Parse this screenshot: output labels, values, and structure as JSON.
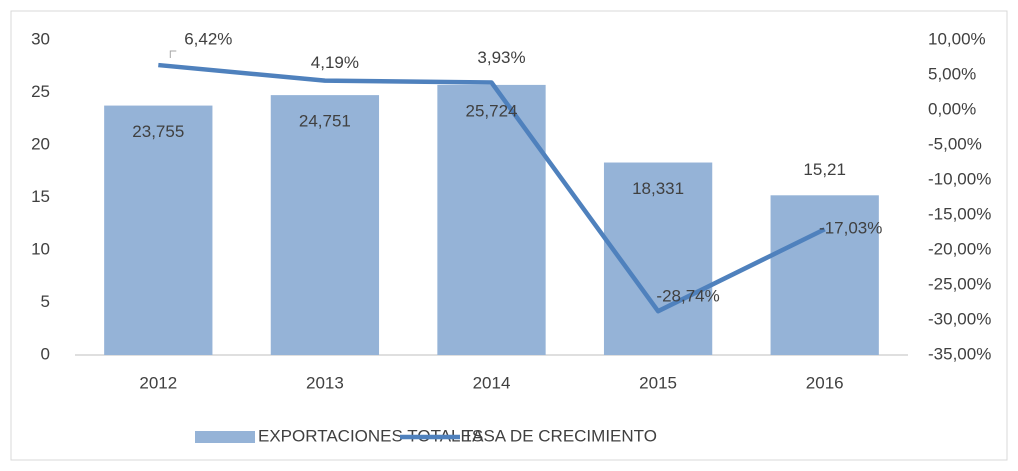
{
  "chart_data": {
    "type": "combo",
    "categories": [
      "2012",
      "2013",
      "2014",
      "2015",
      "2016"
    ],
    "series": [
      {
        "name": "EXPORTACIONES TOTALES",
        "type": "bar",
        "color": "#95b3d7",
        "values": [
          23.755,
          24.751,
          25.724,
          18.331,
          15.21
        ],
        "value_labels": [
          "23,755",
          "24,751",
          "25,724",
          "18,331",
          "15,21"
        ]
      },
      {
        "name": "TASA DE CRECIMIENTO",
        "type": "line",
        "axis": "y2",
        "color": "#4f81bd",
        "values": [
          6.42,
          4.19,
          3.93,
          -28.74,
          -17.03
        ],
        "value_labels": [
          "6,42%",
          "4,19%",
          "3,93%",
          "-28,74%",
          "-17,03%"
        ]
      }
    ],
    "ylim": [
      0,
      30
    ],
    "yticks": [
      0,
      5,
      10,
      15,
      20,
      25,
      30
    ],
    "y2lim": [
      -35,
      10
    ],
    "y2ticks": [
      {
        "value": -35,
        "label": "-35,00%"
      },
      {
        "value": -30,
        "label": "-30,00%"
      },
      {
        "value": -25,
        "label": "-25,00%"
      },
      {
        "value": -20,
        "label": "-20,00%"
      },
      {
        "value": -15,
        "label": "-15,00%"
      },
      {
        "value": -10,
        "label": "-10,00%"
      },
      {
        "value": -5,
        "label": "-5,00%"
      },
      {
        "value": 0,
        "label": "0,00%"
      },
      {
        "value": 5,
        "label": "5,00%"
      },
      {
        "value": 10,
        "label": "10,00%"
      }
    ],
    "grid": false,
    "legend": "bottom"
  }
}
